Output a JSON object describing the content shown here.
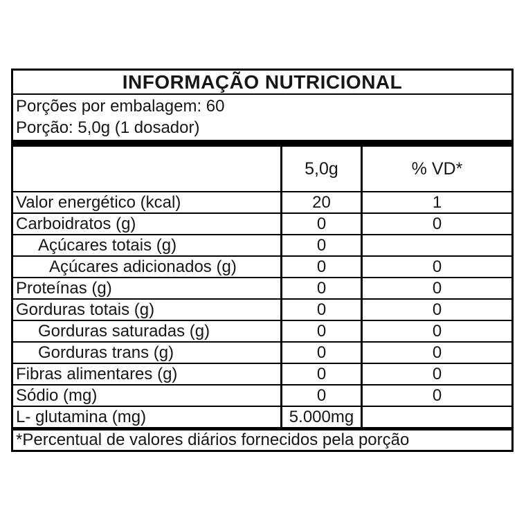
{
  "colors": {
    "border": "#000000",
    "text": "#161616",
    "background": "#ffffff"
  },
  "label": {
    "title": "INFORMAÇÃO NUTRICIONAL",
    "servings": {
      "per_package": "Porções por embalagem: 60",
      "portion": "Porção: 5,0g (1 dosador)"
    },
    "columns": {
      "amount": "5,0g",
      "daily_value": "% VD*"
    },
    "rows": [
      {
        "label": "Valor energético (kcal)",
        "indent": 0,
        "amount": "20",
        "daily_value": "1"
      },
      {
        "label": "Carboidratos (g)",
        "indent": 0,
        "amount": "0",
        "daily_value": "0"
      },
      {
        "label": "Açúcares totais (g)",
        "indent": 1,
        "amount": "0",
        "daily_value": ""
      },
      {
        "label": "Açúcares adicionados (g)",
        "indent": 2,
        "amount": "0",
        "daily_value": "0"
      },
      {
        "label": "Proteínas (g)",
        "indent": 0,
        "amount": "0",
        "daily_value": "0"
      },
      {
        "label": "Gorduras totais (g)",
        "indent": 0,
        "amount": "0",
        "daily_value": "0"
      },
      {
        "label": "Gorduras saturadas (g)",
        "indent": 1,
        "amount": "0",
        "daily_value": "0"
      },
      {
        "label": "Gorduras trans (g)",
        "indent": 1,
        "amount": "0",
        "daily_value": "0"
      },
      {
        "label": "Fibras alimentares (g)",
        "indent": 0,
        "amount": "0",
        "daily_value": "0"
      },
      {
        "label": "Sódio (mg)",
        "indent": 0,
        "amount": "0",
        "daily_value": "0"
      },
      {
        "label": "L- glutamina (mg)",
        "indent": 0,
        "amount": "5.000mg",
        "daily_value": ""
      }
    ],
    "footnote": "*Percentual de valores diários fornecidos pela porção"
  }
}
